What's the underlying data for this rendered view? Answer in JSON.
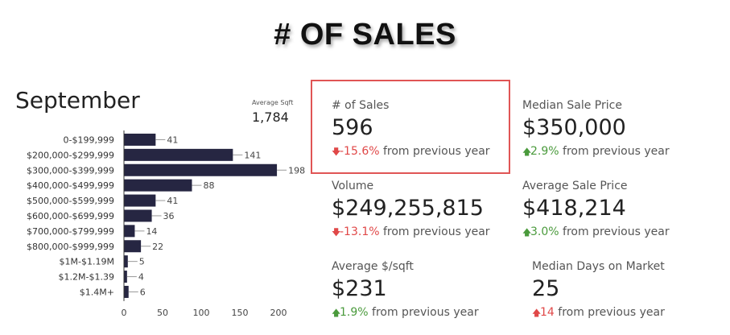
{
  "title": "# OF SALES",
  "month": "September",
  "average_sqft": {
    "label": "Average Sqft",
    "value": "1,784"
  },
  "colors": {
    "bar": "#262642",
    "up": "#4a9a3c",
    "down": "#e04848"
  },
  "kpis": [
    {
      "label": "# of Sales",
      "value": "596",
      "change": "-15.6%",
      "direction": "down",
      "suffix": "from previous year",
      "highlighted": true
    },
    {
      "label": "Median Sale Price",
      "value": "$350,000",
      "change": "2.9%",
      "direction": "up",
      "suffix": "from previous year"
    },
    {
      "label": "Volume",
      "value": "$249,255,815",
      "change": "-13.1%",
      "direction": "down",
      "suffix": "from previous year"
    },
    {
      "label": "Average Sale Price",
      "value": "$418,214",
      "change": "3.0%",
      "direction": "up",
      "suffix": "from previous year"
    },
    {
      "label": "Average $/sqft",
      "value": "$231",
      "change": "1.9%",
      "direction": "up",
      "suffix": "from previous year"
    },
    {
      "label": "Median Days on Market",
      "value": "25",
      "change": "14",
      "direction": "up_red",
      "suffix": "from previous year"
    }
  ],
  "chart_data": {
    "type": "bar",
    "orientation": "horizontal",
    "categories": [
      "0-$199,999",
      "$200,000-$299,999",
      "$300,000-$399,999",
      "$400,000-$499,999",
      "$500,000-$599,999",
      "$600,000-$699,999",
      "$700,000-$799,999",
      "$800,000-$999,999",
      "$1M-$1.19M",
      "$1.2M-$1.39",
      "$1.4M+"
    ],
    "values": [
      41,
      141,
      198,
      88,
      41,
      36,
      14,
      22,
      5,
      4,
      6
    ],
    "value_labels": [
      "41",
      "141",
      "198",
      "88",
      "41",
      "36",
      "14",
      "22",
      "5",
      "4",
      "6"
    ],
    "xlim": [
      0,
      220
    ],
    "xticks": [
      0,
      50,
      100,
      150,
      200
    ],
    "xtick_labels": [
      "0",
      "50",
      "100",
      "150",
      "200"
    ]
  }
}
